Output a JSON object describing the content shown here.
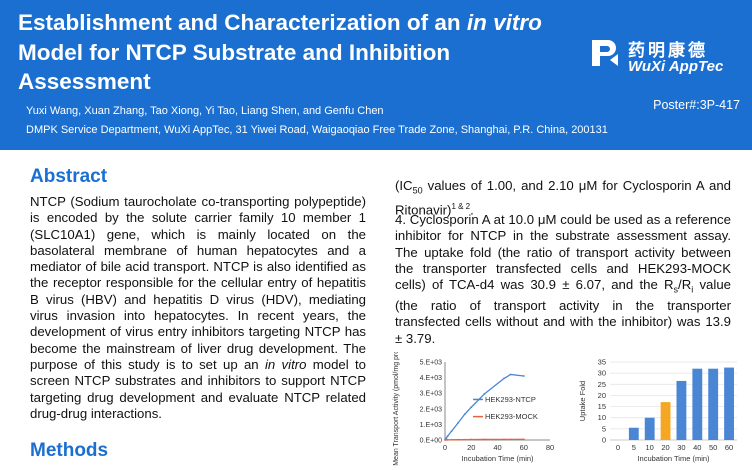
{
  "header": {
    "title_part1": "Establishment and Characterization of an ",
    "title_italic1": "in vitro",
    "title_part2": " Model for NTCP Substrate and Inhibition Assessment",
    "authors": "Yuxi Wang, Xuan Zhang, Tao Xiong, Yi Tao, Liang Shen, and Genfu Chen",
    "affiliation": "DMPK Service Department, WuXi AppTec, 31 Yiwei Road, Waigaoqiao Free Trade Zone, Shanghai, P.R. China, 200131",
    "poster_id": "Poster#:3P-417",
    "logo_cn": "药明康德",
    "logo_en": "WuXi AppTec",
    "color_banner": "#1a6fd1"
  },
  "abstract": {
    "heading": "Abstract",
    "text1": "NTCP (Sodium taurocholate co-transporting polypeptide) is encoded by the solute carrier family 10 member 1 (SLC10A1) gene, which is mainly located on the basolateral membrane of human hepatocytes and a mediator of bile acid transport. NTCP is also identified as the receptor responsible for the cellular entry of hepatitis B virus (HBV) and hepatitis D virus (HDV), mediating virus invasion into hepatocytes. In recent years, the development of virus entry inhibitors targeting NTCP has become the mainstream of liver drug development. The purpose of this study is to set up an ",
    "italic": "in vitro",
    "text2": " model to screen NTCP substrates and inhibitors to support NTCP targeting drug development and evaluate NTCP related drug-drug interactions."
  },
  "methods": {
    "heading": "Methods"
  },
  "results": {
    "line1_a": "(IC",
    "line1_sub": "50",
    "line1_b": " values of 1.00, and 2.10 μM for Cyclosporin A and Ritonavir)",
    "line1_sup": "1 & 2",
    "line1_end": ".",
    "p4_a": "4. Cyclosporin A at 10.0 μM could be used as a reference inhibitor for NTCP in the substrate assessment assay. The uptake fold (the ratio of transport activity between the transporter transfected cells and HEK293-MOCK cells) of TCA-d4 was 30.9 ± 6.07, and the R",
    "p4_sub1": "s",
    "p4_mid": "/R",
    "p4_sub2": "i",
    "p4_b": " value (the ratio of transport activity in the transporter transfected cells without and with the inhibitor) was 13.9 ± 3.79."
  },
  "chart_data": [
    {
      "type": "line",
      "xlabel": "Incubation Time  (min)",
      "ylabel": "Mean Transport Activity (pmol/mg protein)",
      "x_ticks": [
        "0",
        "20",
        "40",
        "60",
        "80"
      ],
      "y_ticks": [
        "0.E+00",
        "1.E+03",
        "2.E+03",
        "3.E+03",
        "4.E+03",
        "5.E+03"
      ],
      "xlim": [
        0,
        80
      ],
      "ylim": [
        0,
        5000
      ],
      "series": [
        {
          "name": "HEK293-NTCP",
          "color": "#4a86d4",
          "x": [
            0,
            1,
            2,
            5,
            10,
            15,
            20,
            30,
            45,
            50,
            60
          ],
          "y": [
            10,
            120,
            250,
            560,
            1100,
            1650,
            2100,
            2950,
            3950,
            4200,
            4100
          ]
        },
        {
          "name": "HEK293-MOCK",
          "color": "#e8603c",
          "x": [
            0,
            1,
            2,
            5,
            10,
            15,
            20,
            30,
            45,
            50,
            60
          ],
          "y": [
            5,
            8,
            10,
            15,
            20,
            25,
            30,
            35,
            40,
            42,
            45
          ]
        }
      ]
    },
    {
      "type": "bar",
      "xlabel": "Incubation Time  (min)",
      "ylabel": "Uptake Fold",
      "x_ticks": [
        "0",
        "5",
        "10",
        "20",
        "30",
        "40",
        "50",
        "60"
      ],
      "y_ticks": [
        "0",
        "5",
        "10",
        "15",
        "20",
        "25",
        "30",
        "35"
      ],
      "ylim": [
        0,
        35
      ],
      "categories": [
        "5",
        "10",
        "20",
        "30",
        "40",
        "50",
        "60"
      ],
      "values": [
        5.5,
        10,
        17,
        26.5,
        32,
        32,
        32.5
      ],
      "colors": [
        "#4a86d4",
        "#4a86d4",
        "#f5a623",
        "#4a86d4",
        "#4a86d4",
        "#4a86d4",
        "#4a86d4"
      ]
    }
  ]
}
